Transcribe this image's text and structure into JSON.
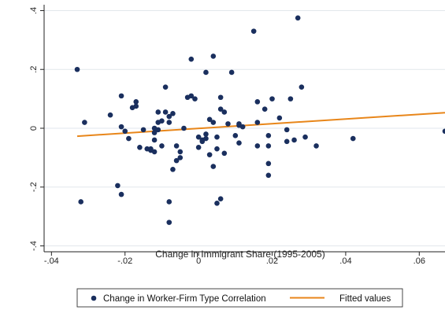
{
  "chart_data": {
    "type": "scatter",
    "title": "",
    "xlabel": "Change in Immigrant Share (1995-2005)",
    "ylabel": "",
    "xlim": [
      -0.042,
      0.067
    ],
    "ylim": [
      -0.42,
      0.42
    ],
    "x_ticks": [
      -0.04,
      -0.02,
      0,
      0.02,
      0.04,
      0.06
    ],
    "x_tick_labels": [
      "-.04",
      "-.02",
      "0",
      ".02",
      ".04",
      ".06"
    ],
    "y_ticks": [
      -0.4,
      -0.2,
      0,
      0.2,
      0.4
    ],
    "y_tick_labels": [
      "-.4",
      "-.2",
      "0",
      ".2",
      ".4"
    ],
    "grid": "horizontal",
    "legend_placement": "bottom",
    "colors": {
      "scatter": "#1a2f5e",
      "fitted": "#e8861a",
      "grid": "#e2e7ec",
      "axis": "#222222"
    },
    "series": [
      {
        "name": "Change in Worker-Firm Type Correlation",
        "kind": "scatter",
        "points": [
          [
            -0.033,
            0.2
          ],
          [
            -0.032,
            -0.25
          ],
          [
            -0.031,
            0.02
          ],
          [
            -0.024,
            0.045
          ],
          [
            -0.022,
            -0.195
          ],
          [
            -0.021,
            0.11
          ],
          [
            -0.021,
            0.005
          ],
          [
            -0.021,
            -0.225
          ],
          [
            -0.02,
            -0.01
          ],
          [
            -0.019,
            -0.035
          ],
          [
            -0.018,
            0.07
          ],
          [
            -0.017,
            0.09
          ],
          [
            -0.017,
            0.075
          ],
          [
            -0.016,
            -0.065
          ],
          [
            -0.015,
            -0.005
          ],
          [
            -0.014,
            -0.07
          ],
          [
            -0.013,
            -0.07
          ],
          [
            -0.013,
            -0.075
          ],
          [
            -0.012,
            0.0
          ],
          [
            -0.012,
            -0.015
          ],
          [
            -0.012,
            -0.04
          ],
          [
            -0.012,
            -0.08
          ],
          [
            -0.011,
            0.055
          ],
          [
            -0.011,
            0.02
          ],
          [
            -0.011,
            -0.005
          ],
          [
            -0.01,
            0.025
          ],
          [
            -0.01,
            -0.06
          ],
          [
            -0.009,
            0.14
          ],
          [
            -0.009,
            0.055
          ],
          [
            -0.008,
            0.04
          ],
          [
            -0.008,
            0.02
          ],
          [
            -0.008,
            -0.25
          ],
          [
            -0.008,
            -0.32
          ],
          [
            -0.007,
            0.05
          ],
          [
            -0.007,
            -0.14
          ],
          [
            -0.006,
            -0.06
          ],
          [
            -0.006,
            -0.11
          ],
          [
            -0.005,
            -0.08
          ],
          [
            -0.005,
            -0.1
          ],
          [
            -0.004,
            0.0
          ],
          [
            -0.003,
            0.105
          ],
          [
            -0.002,
            0.235
          ],
          [
            -0.002,
            0.11
          ],
          [
            -0.001,
            0.1
          ],
          [
            0.0,
            -0.03
          ],
          [
            0.0,
            -0.065
          ],
          [
            0.001,
            -0.04
          ],
          [
            0.001,
            -0.045
          ],
          [
            0.002,
            0.19
          ],
          [
            0.002,
            -0.02
          ],
          [
            0.002,
            -0.035
          ],
          [
            0.003,
            0.03
          ],
          [
            0.003,
            -0.09
          ],
          [
            0.004,
            0.245
          ],
          [
            0.004,
            0.02
          ],
          [
            0.004,
            -0.13
          ],
          [
            0.005,
            -0.03
          ],
          [
            0.005,
            -0.07
          ],
          [
            0.005,
            -0.255
          ],
          [
            0.006,
            0.105
          ],
          [
            0.006,
            0.065
          ],
          [
            0.006,
            -0.24
          ],
          [
            0.007,
            0.055
          ],
          [
            0.007,
            -0.085
          ],
          [
            0.008,
            0.015
          ],
          [
            0.009,
            0.19
          ],
          [
            0.01,
            -0.025
          ],
          [
            0.011,
            0.015
          ],
          [
            0.011,
            0.01
          ],
          [
            0.011,
            -0.05
          ],
          [
            0.012,
            0.005
          ],
          [
            0.015,
            0.33
          ],
          [
            0.016,
            0.09
          ],
          [
            0.016,
            0.02
          ],
          [
            0.016,
            -0.06
          ],
          [
            0.018,
            0.065
          ],
          [
            0.019,
            -0.025
          ],
          [
            0.019,
            -0.06
          ],
          [
            0.019,
            -0.12
          ],
          [
            0.019,
            -0.16
          ],
          [
            0.02,
            0.1
          ],
          [
            0.022,
            0.035
          ],
          [
            0.024,
            -0.005
          ],
          [
            0.024,
            -0.045
          ],
          [
            0.025,
            0.1
          ],
          [
            0.026,
            -0.04
          ],
          [
            0.027,
            0.375
          ],
          [
            0.028,
            0.14
          ],
          [
            0.029,
            -0.03
          ],
          [
            0.032,
            -0.06
          ],
          [
            0.042,
            -0.035
          ],
          [
            0.067,
            -0.01
          ]
        ]
      },
      {
        "name": "Fitted values",
        "kind": "line",
        "points": [
          [
            -0.033,
            -0.027
          ],
          [
            0.067,
            0.053
          ]
        ]
      }
    ]
  }
}
